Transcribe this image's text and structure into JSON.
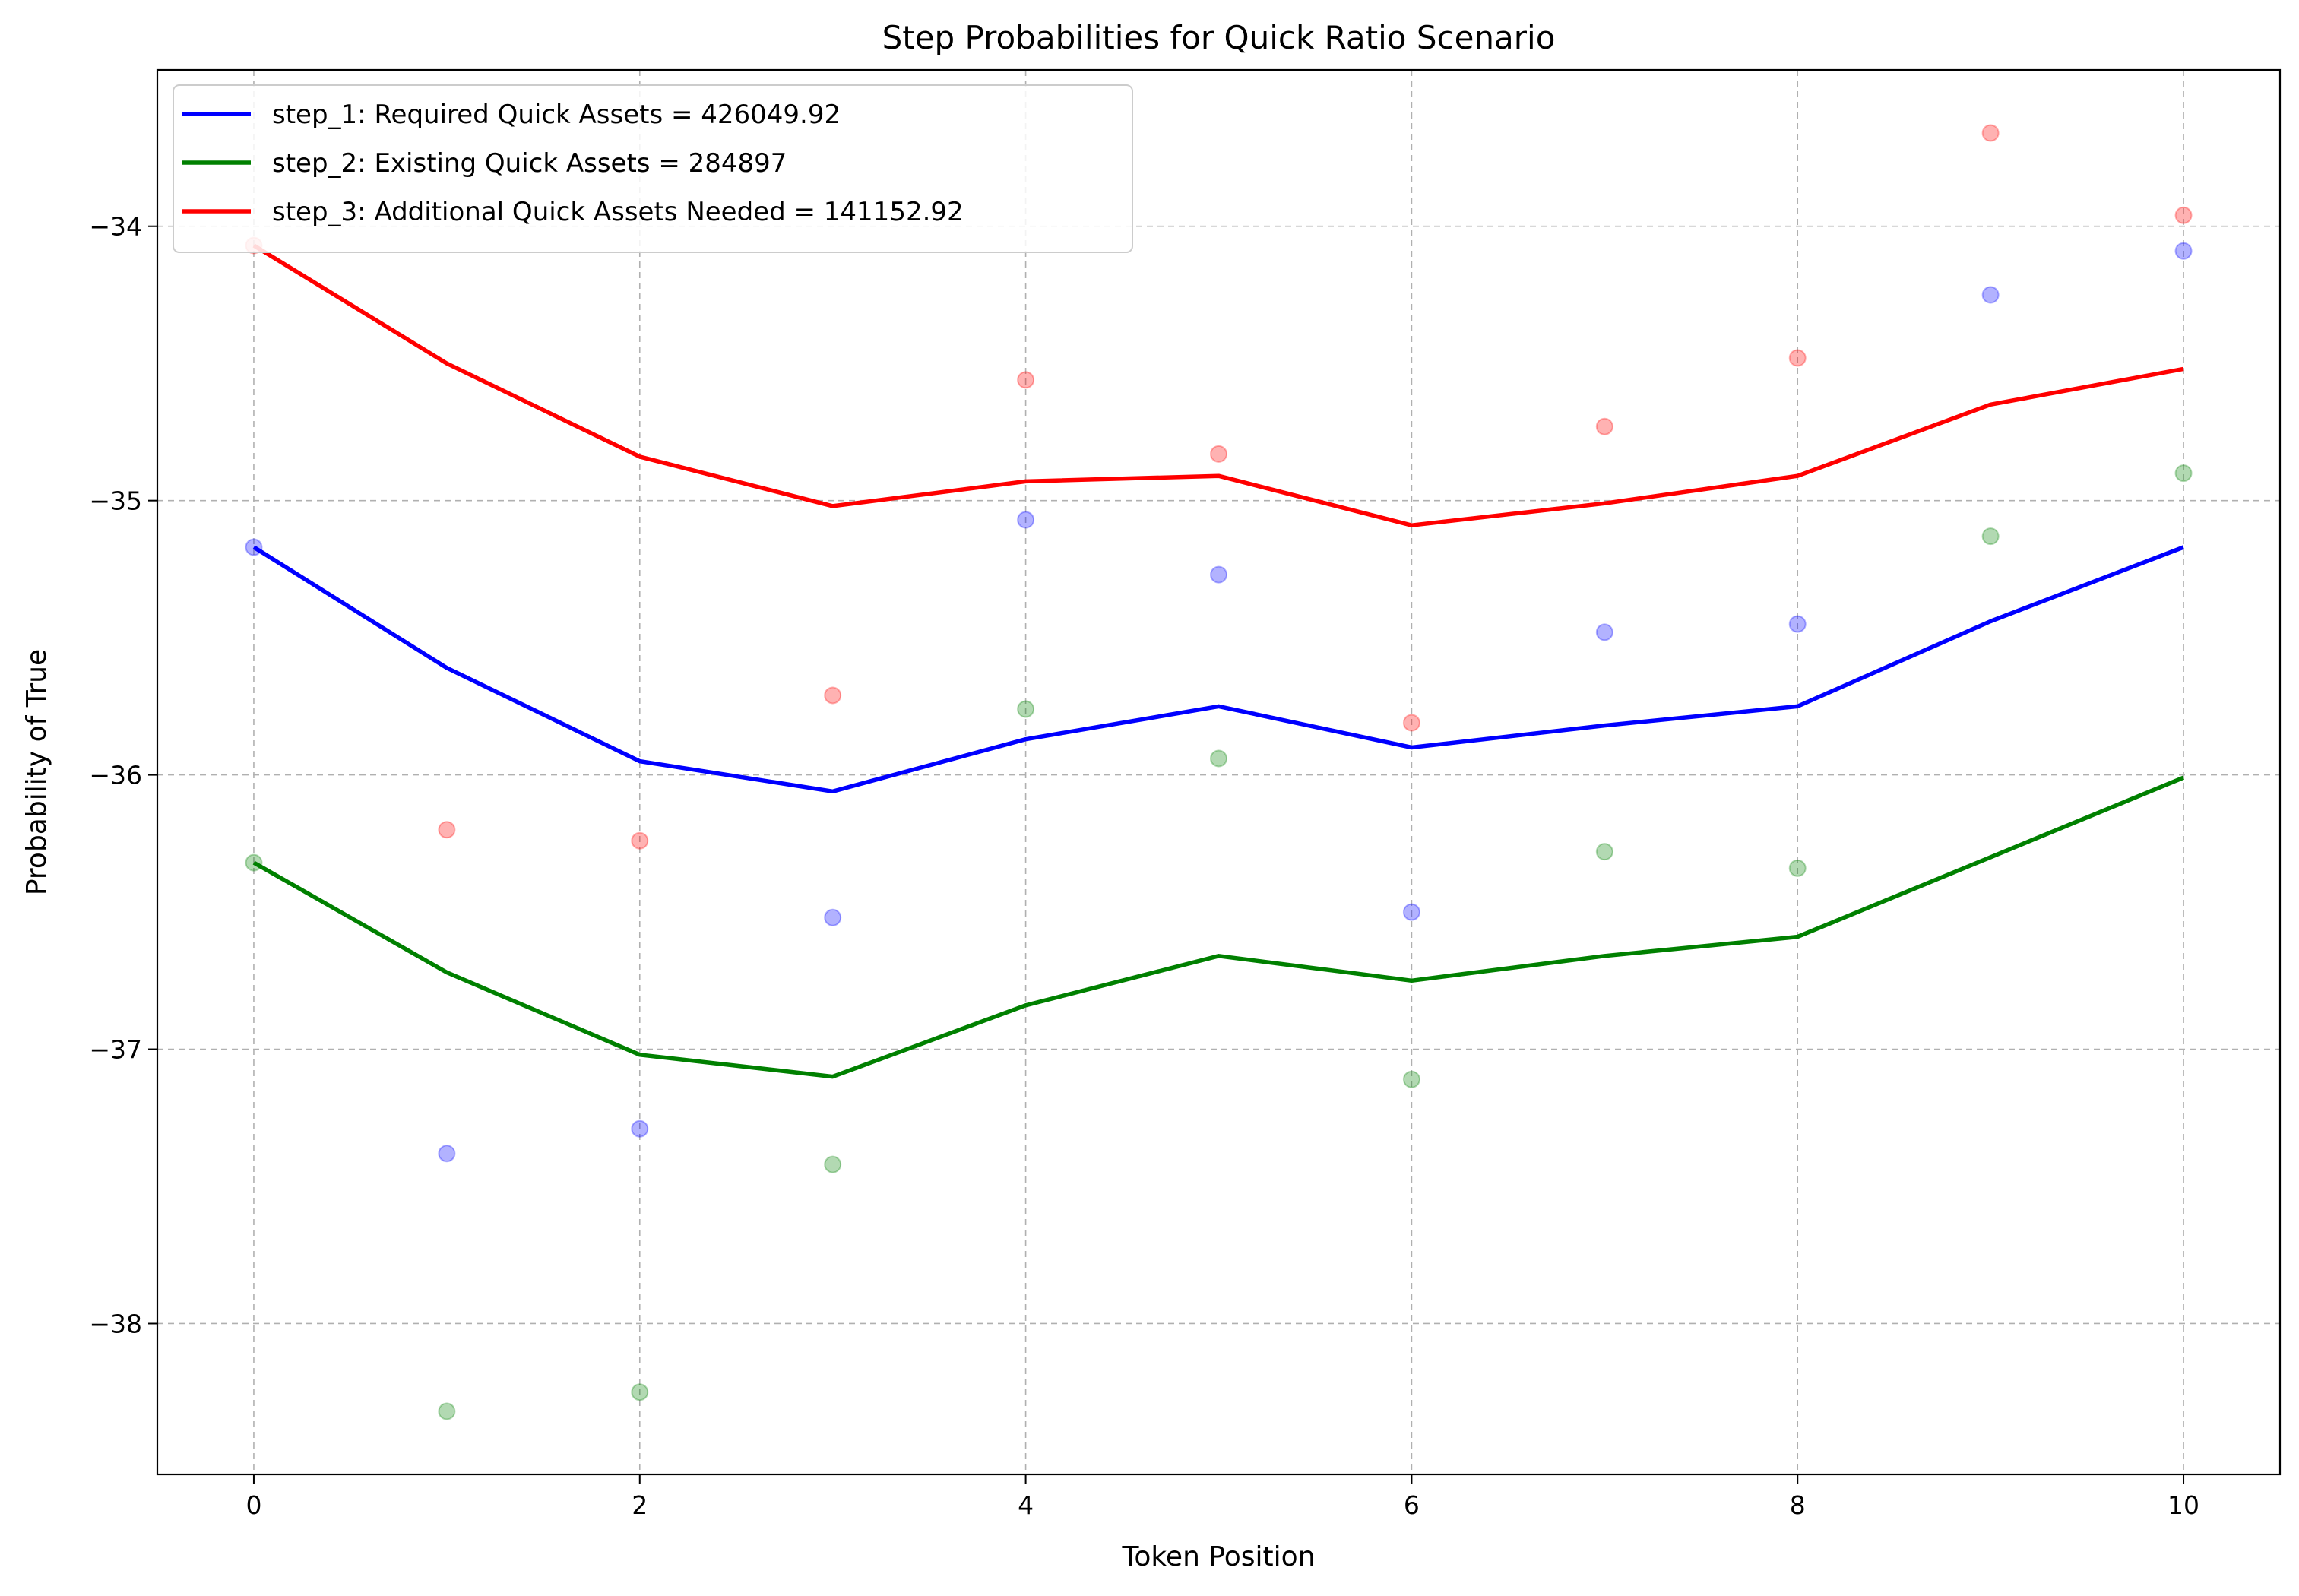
{
  "chart_data": {
    "type": "line",
    "title": "Step Probabilities for Quick Ratio Scenario",
    "xlabel": "Token Position",
    "ylabel": "Probability of True",
    "xlim": [
      -0.5,
      10.5
    ],
    "ylim": [
      -38.55,
      -33.43
    ],
    "xticks": [
      0,
      2,
      4,
      6,
      8,
      10
    ],
    "yticks": [
      -38,
      -37,
      -36,
      -35,
      -34
    ],
    "xtick_labels": [
      "0",
      "2",
      "4",
      "6",
      "8",
      "10"
    ],
    "ytick_labels": [
      "−38",
      "−37",
      "−36",
      "−35",
      "−34"
    ],
    "grid": true,
    "legend_position": "top-left",
    "x": [
      0,
      1,
      2,
      3,
      4,
      5,
      6,
      7,
      8,
      9,
      10
    ],
    "series": [
      {
        "name": "step_1: Required Quick Assets = 426049.92",
        "color": "#0000ff",
        "line": [
          -35.17,
          -35.61,
          -35.95,
          -36.06,
          -35.87,
          -35.75,
          -35.9,
          -35.82,
          -35.75,
          -35.44,
          -35.17
        ],
        "points": [
          -35.17,
          -37.38,
          -37.29,
          -36.52,
          -35.07,
          -35.27,
          -36.5,
          -35.48,
          -35.45,
          -34.25,
          -34.09
        ]
      },
      {
        "name": "step_2: Existing Quick Assets = 284897",
        "color": "#008000",
        "line": [
          -36.32,
          -36.72,
          -37.02,
          -37.1,
          -36.84,
          -36.66,
          -36.75,
          -36.66,
          -36.59,
          -36.3,
          -36.01
        ],
        "points": [
          -36.32,
          -38.32,
          -38.25,
          -37.42,
          -35.76,
          -35.94,
          -37.11,
          -36.28,
          -36.34,
          -35.13,
          -34.9
        ]
      },
      {
        "name": "step_3: Additional Quick Assets Needed = 141152.92",
        "color": "#ff0000",
        "line": [
          -34.07,
          -34.5,
          -34.84,
          -35.02,
          -34.93,
          -34.91,
          -35.09,
          -35.01,
          -34.91,
          -34.65,
          -34.52
        ],
        "points": [
          -34.07,
          -36.2,
          -36.24,
          -35.71,
          -34.56,
          -34.83,
          -35.81,
          -34.73,
          -34.48,
          -33.66,
          -33.96
        ]
      }
    ]
  }
}
